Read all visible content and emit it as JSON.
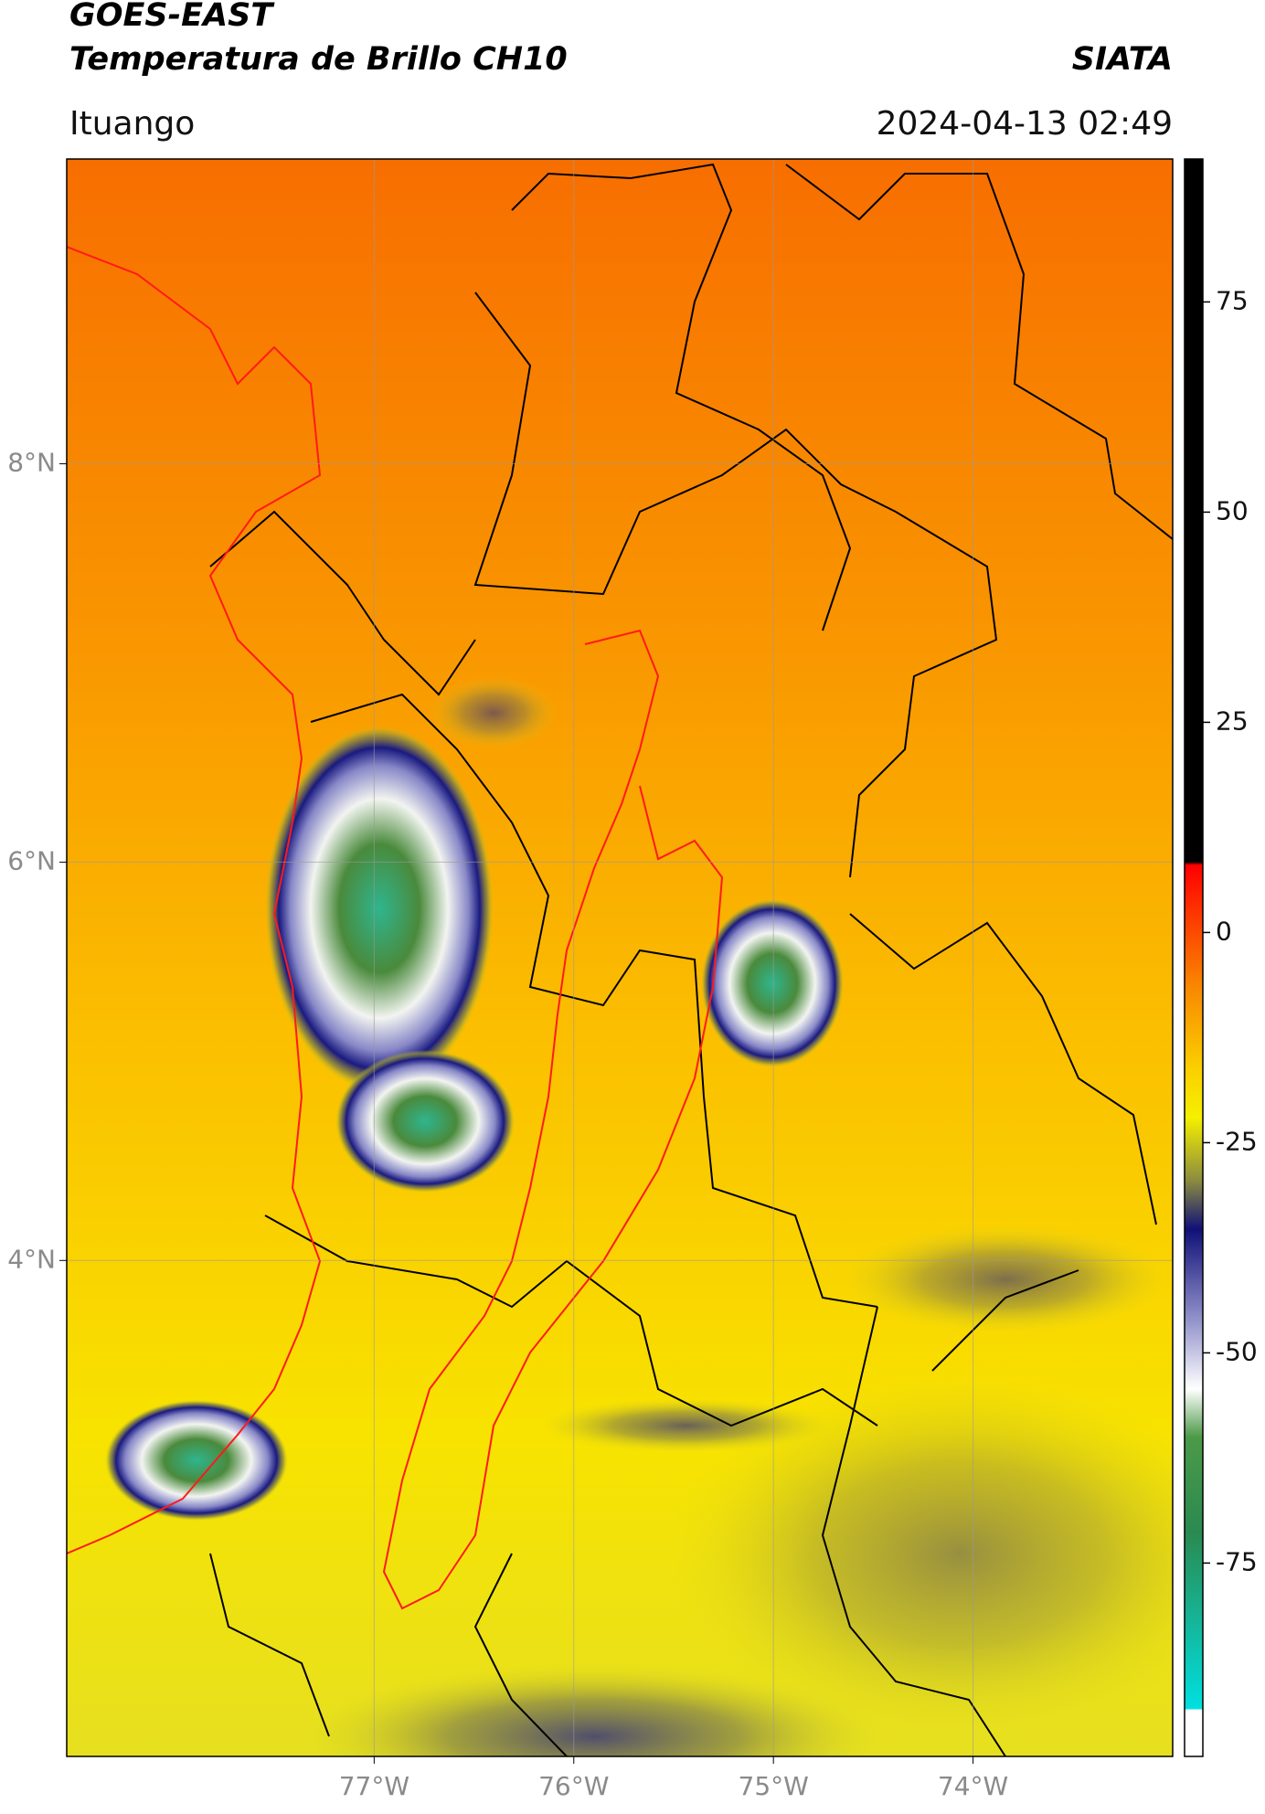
{
  "header": {
    "satellite": "GOES-EAST",
    "product": "Temperatura de Brillo CH10",
    "brand": "SIATA",
    "location": "Ituango",
    "timestamp": "2024-04-13 02:49"
  },
  "map": {
    "xlim": [
      -78.54,
      -73.0
    ],
    "ylim": [
      1.51,
      9.53
    ],
    "xticks": [
      {
        "value": -77,
        "label": "77°W"
      },
      {
        "value": -76,
        "label": "76°W"
      },
      {
        "value": -75,
        "label": "75°W"
      },
      {
        "value": -74,
        "label": "74°W"
      }
    ],
    "yticks": [
      {
        "value": 8,
        "label": "8°N"
      },
      {
        "value": 6,
        "label": "6°N"
      },
      {
        "value": 4,
        "label": "4°N"
      }
    ]
  },
  "colorbar": {
    "lim": [
      -98,
      92
    ],
    "ticks": [
      75,
      50,
      25,
      0,
      -25,
      -50,
      -75
    ]
  }
}
